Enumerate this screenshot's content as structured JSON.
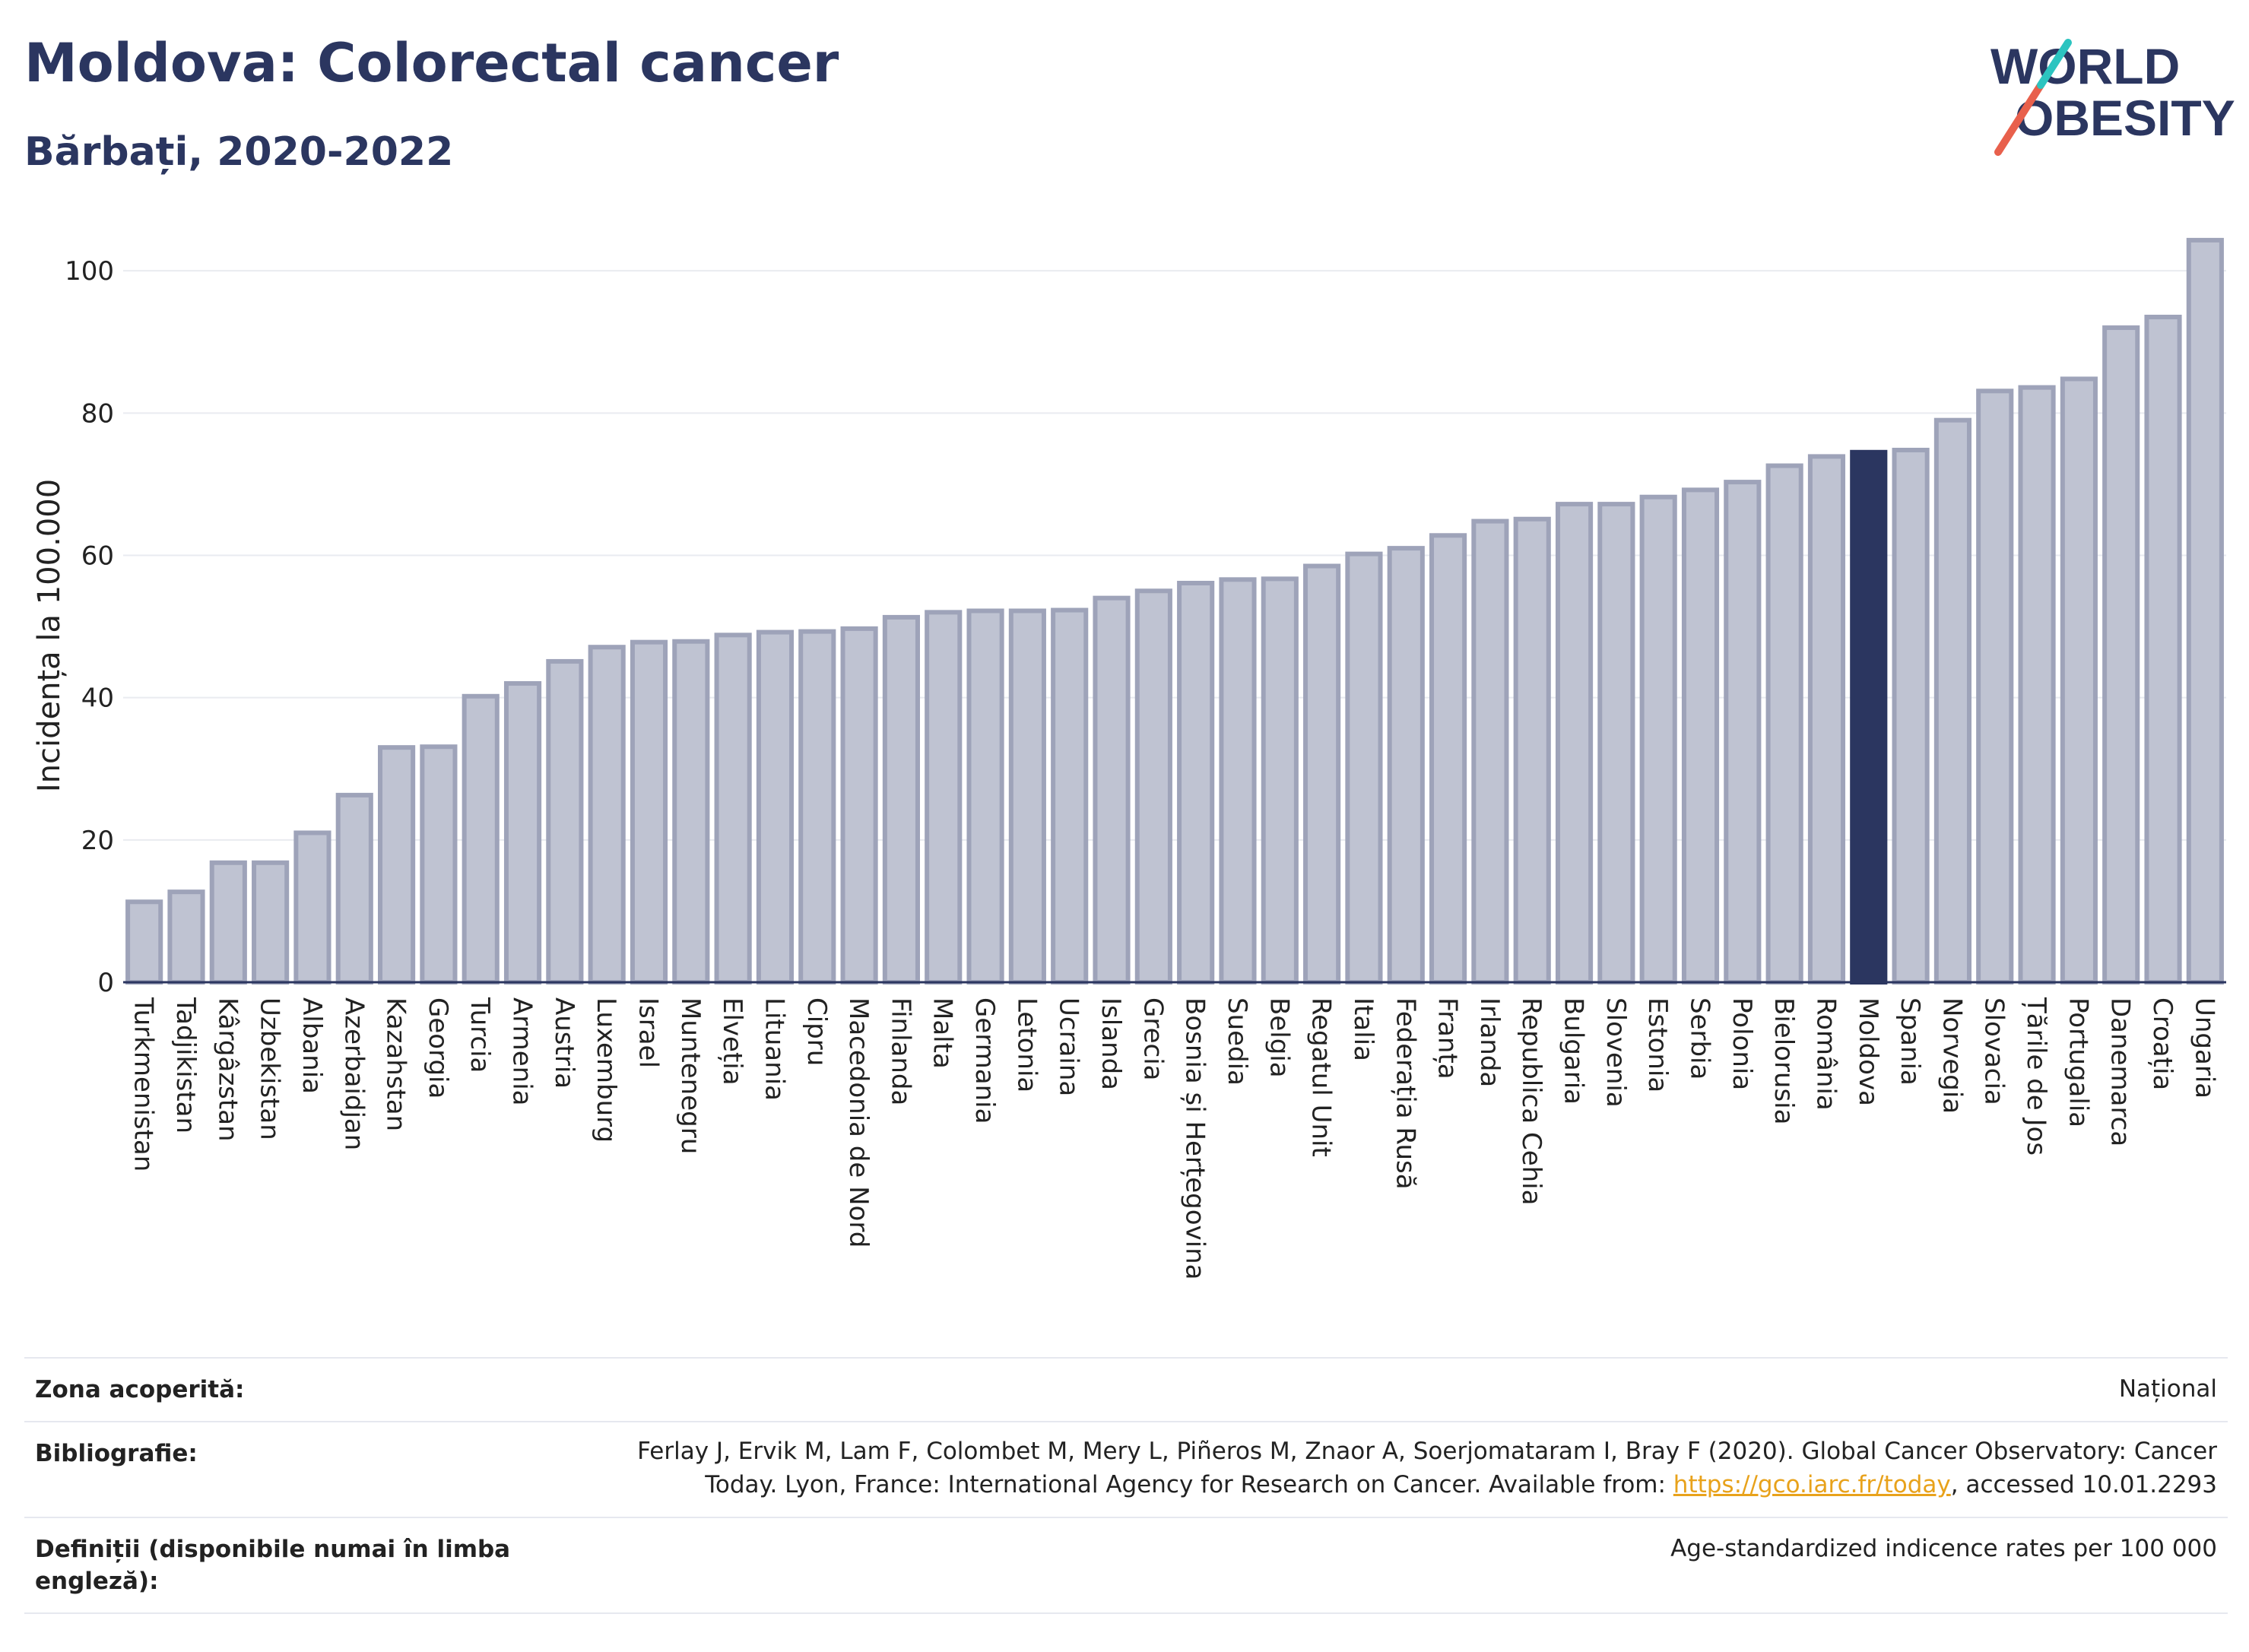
{
  "header": {
    "title": "Moldova: Colorectal cancer",
    "subtitle": "Bărbați, 2020-2022",
    "logo_line1": "WORLD",
    "logo_line2": "OBESITY"
  },
  "colors": {
    "bar": "#bfc3d2",
    "bar_border": "#9ea3b9",
    "highlight": "#2b3660",
    "text": "#2b3660",
    "logo_red": "#e8604c",
    "logo_teal": "#2cc4c0"
  },
  "chart_data": {
    "type": "bar",
    "ylabel": "Incidența la 100.000",
    "ylim": [
      0,
      106
    ],
    "yticks": [
      0,
      20,
      40,
      60,
      80,
      100
    ],
    "grid": true,
    "highlight": "Moldova",
    "categories": [
      "Turkmenistan",
      "Tadjikistan",
      "Kârgâzstan",
      "Uzbekistan",
      "Albania",
      "Azerbaidjan",
      "Kazahstan",
      "Georgia",
      "Turcia",
      "Armenia",
      "Austria",
      "Luxemburg",
      "Israel",
      "Muntenegru",
      "Elveția",
      "Lituania",
      "Cipru",
      "Macedonia de Nord",
      "Finlanda",
      "Malta",
      "Germania",
      "Letonia",
      "Ucraina",
      "Islanda",
      "Grecia",
      "Bosnia și Herțegovina",
      "Suedia",
      "Belgia",
      "Regatul Unit",
      "Italia",
      "Federația Rusă",
      "Franța",
      "Irlanda",
      "Republica Cehia",
      "Bulgaria",
      "Slovenia",
      "Estonia",
      "Serbia",
      "Polonia",
      "Bielorusia",
      "România",
      "Moldova",
      "Spania",
      "Norvegia",
      "Slovacia",
      "Țările de Jos",
      "Portugalia",
      "Danemarca",
      "Croația",
      "Ungaria"
    ],
    "values": [
      11.3,
      12.7,
      16.8,
      16.8,
      21.0,
      26.3,
      33.0,
      33.1,
      40.2,
      42.0,
      45.1,
      47.1,
      47.8,
      47.9,
      48.8,
      49.2,
      49.3,
      49.7,
      51.3,
      52.0,
      52.2,
      52.2,
      52.3,
      54.0,
      55.0,
      56.1,
      56.6,
      56.7,
      58.5,
      60.2,
      61.0,
      62.8,
      64.8,
      65.1,
      67.2,
      67.2,
      68.2,
      69.2,
      70.3,
      72.6,
      73.9,
      74.5,
      74.8,
      79.0,
      83.1,
      83.6,
      84.8,
      92.0,
      93.5,
      104.3
    ]
  },
  "meta": {
    "rows": [
      {
        "label": "Zona acoperită:",
        "value": "Național"
      },
      {
        "label": "Bibliografie:",
        "value_pre": "Ferlay J, Ervik M, Lam F, Colombet M, Mery L, Piñeros M, Znaor A, Soerjomataram I, Bray F (2020). Global Cancer Observatory: Cancer Today. Lyon, France: International Agency for Research on Cancer. Available from: ",
        "link": "https://gco.iarc.fr/today",
        "value_post": ", accessed 10.01.2293"
      },
      {
        "label": "Definiții (disponibile numai în limba engleză):",
        "value": "Age-standardized indicence rates per 100 000"
      }
    ]
  }
}
